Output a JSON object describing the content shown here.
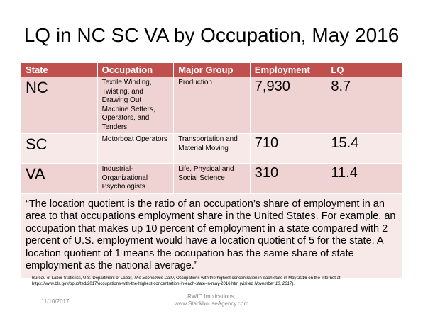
{
  "title": "LQ in NC SC VA by Occupation, May 2016",
  "table": {
    "header": [
      "State",
      "Occupation",
      "Major Group",
      "Employment",
      "LQ"
    ],
    "rows": [
      [
        "NC",
        "Textile Winding, Twisting, and Drawing Out Machine Setters, Operators, and Tenders",
        "Production",
        "7,930",
        "8.7"
      ],
      [
        "SC",
        "Motorboat Operators",
        "Transportation and Material Moving",
        "710",
        "15.4"
      ],
      [
        "VA",
        "Industrial-Organizational Psychologists",
        "Life, Physical and Social Science",
        "310",
        "11.4"
      ]
    ],
    "quote": "“The location quotient is the ratio of an occupation’s share of employment in an area to that occupations employment share in the United States. For example, an occupation that makes up 10 percent of employment in a state compared with 2 percent of U.S. employment would have a location quotient of 5 for the state. A location quotient of 1 means the occupation has the same share of state employment as the national average.”"
  },
  "source": [
    "Bureau of Labor Statistics, U.S. Department of Labor, ",
    "The Economics Daily",
    ", Occupations with the highest concentration in each state in May 2016  on the Internet at https://www.bls.gov/opub/ted/2017/occupations-with-the-highest-concentration-in-each-state-in-may-2016.htm (visited ",
    "November 10, 2017",
    ")."
  ],
  "footer": {
    "date": "11/10/2017",
    "center": [
      "RWIC Implications,",
      "www.StackhouseAgency.com"
    ]
  }
}
